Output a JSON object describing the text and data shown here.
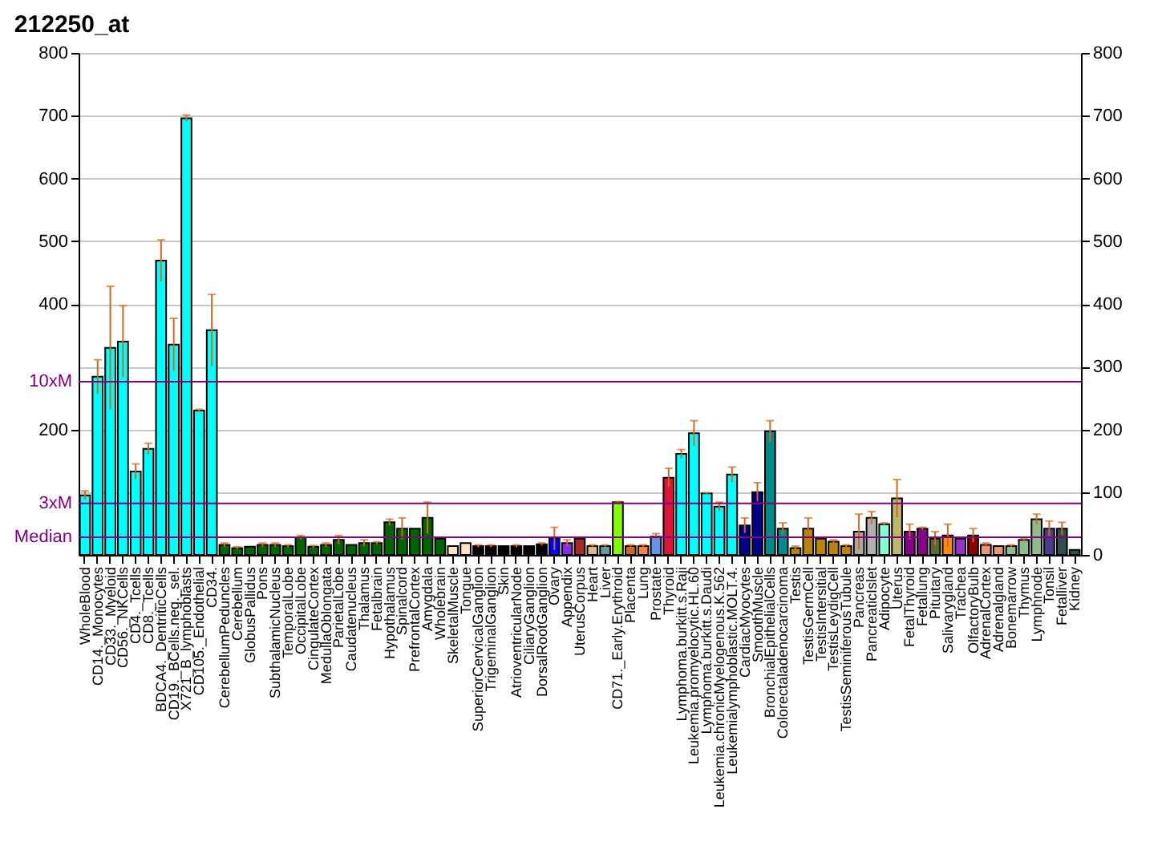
{
  "chart_data": {
    "type": "bar",
    "title": "212250_at",
    "categories": [
      "WholeBlood",
      "CD14._Monocytes",
      "CD33._Myeloid",
      "CD56._NKCells",
      "CD4._Tcells",
      "CD8._Tcells",
      "BDCA4._DentriticCells",
      "CD19._BCells.neg._sel.",
      "X721_B_lymphoblasts",
      "CD105._Endothelial",
      "CD34.",
      "CerebellumPeduncles",
      "Cerebellum",
      "GlobusPallidus",
      "Pons",
      "SubthalamicNucleus",
      "TemporalLobe",
      "OccipitalLobe",
      "CingulateCortex",
      "MedullaOblongata",
      "ParietalLobe",
      "Caudatenucleus",
      "Thalamus",
      "Fetalbrain",
      "Hypothalamus",
      "Spinalcord",
      "PrefrontalCortex",
      "Amygdala",
      "Wholebrain",
      "SkeletalMuscle",
      "Tongue",
      "SuperiorCervicalGanglion",
      "TrigeminalGanglion",
      "Skin",
      "AtrioventricularNode",
      "CiliaryGanglion",
      "DorsalRootGanglion",
      "Ovary",
      "Appendix",
      "UterusCorpus",
      "Heart",
      "Liver",
      "CD71._Early.Erythroid",
      "Placenta",
      "Lung",
      "Prostate",
      "Thyroid",
      "Lymphoma.burkitt.s.Raji",
      "Leukemia.promyelocytic.HL.60",
      "Lymphoma.burkitt.s.Daudi",
      "Leukemia.chronicMyelogenous.K.562",
      "Leukemialymphoblastic.MOLT.4.",
      "CardiacMyocytes",
      "SmoothMuscle",
      "BronchialEpithelialCells",
      "Colorectaladenocarcinoma",
      "Testis",
      "TestisGermCell",
      "TestisIntersitial",
      "TestisLeydigCell",
      "TestisSeminiferousTubule",
      "Pancreas",
      "PancreaticIslet",
      "Adipocyte",
      "Uterus",
      "FetalThyroid",
      "Fetallung",
      "Pituitary",
      "Salivarygland",
      "Trachea",
      "OlfactoryBulb",
      "AdrenalCortex",
      "Adrenalgland",
      "Bonemarrow",
      "Thymus",
      "Lymphnode",
      "Tonsil",
      "Fetalliver",
      "Kidney"
    ],
    "values": [
      95,
      284,
      330,
      340,
      133,
      169,
      469,
      335,
      696,
      230,
      358,
      16,
      11,
      13,
      16,
      16,
      14,
      28,
      13,
      16,
      24,
      16,
      19,
      19,
      52,
      42,
      42,
      59,
      26,
      14,
      19,
      14,
      14,
      14,
      14,
      14,
      17,
      26,
      19,
      26,
      14,
      14,
      84,
      14,
      14,
      29,
      123,
      161,
      194,
      98,
      77,
      128,
      47,
      100,
      197,
      42,
      11,
      42,
      26,
      21,
      14,
      37,
      59,
      49,
      90,
      37,
      42,
      26,
      31,
      26,
      31,
      16,
      14,
      14,
      24,
      57,
      42,
      42,
      8
    ],
    "errors": [
      7,
      27,
      98,
      57,
      12,
      9,
      33,
      42,
      5,
      2,
      57,
      3,
      2,
      null,
      3,
      3,
      2,
      3,
      2,
      3,
      7,
      null,
      5,
      2,
      5,
      17,
      null,
      25,
      null,
      null,
      null,
      2,
      2,
      null,
      2,
      null,
      2,
      18,
      5,
      null,
      2,
      2,
      1,
      2,
      2,
      5,
      15,
      7,
      20,
      1,
      7,
      12,
      12,
      15,
      17,
      9,
      3,
      17,
      null,
      3,
      2,
      28,
      10,
      2,
      30,
      12,
      2,
      11,
      18,
      null,
      11,
      3,
      null,
      2,
      2,
      8,
      12,
      10,
      null
    ],
    "colors": [
      "#00ffff",
      "#00ffff",
      "#00ffff",
      "#00ffff",
      "#00ffff",
      "#00ffff",
      "#00ffff",
      "#00ffff",
      "#00ffff",
      "#00ffff",
      "#00ffff",
      "#006400",
      "#006400",
      "#006400",
      "#006400",
      "#006400",
      "#006400",
      "#006400",
      "#006400",
      "#006400",
      "#006400",
      "#006400",
      "#006400",
      "#006400",
      "#006400",
      "#006400",
      "#006400",
      "#006400",
      "#006400",
      "#ffe4c4",
      "#ffe4c4",
      "#000000",
      "#000000",
      "#000000",
      "#000000",
      "#000000",
      "#000000",
      "#0000ff",
      "#8a2be2",
      "#a52a2a",
      "#deb887",
      "#5f9ea0",
      "#7fff00",
      "#d2691e",
      "#ff7f50",
      "#6495ed",
      "#dc143c",
      "#00ffff",
      "#00ffff",
      "#00ffff",
      "#00ffff",
      "#00ffff",
      "#00008b",
      "#00008b",
      "#008b8b",
      "#008b8b",
      "#b8860b",
      "#b8860b",
      "#b8860b",
      "#b8860b",
      "#b8860b",
      "#a9a9a9",
      "#b0b0b0",
      "#7fffd4",
      "#bdb76b",
      "#8b008b",
      "#8b008b",
      "#556b2f",
      "#ff8c00",
      "#9932cc",
      "#8b0000",
      "#e9967a",
      "#e9967a",
      "#8fbc8f",
      "#8fbc8f",
      "#8fbc8f",
      "#483d8b",
      "#2f4f4f",
      "#2f4f4f"
    ],
    "ylim": [
      0,
      800
    ],
    "yticks": [
      200,
      400,
      500,
      600,
      700,
      800
    ],
    "y2lim": [
      0,
      800
    ],
    "y2ticks": [
      0,
      100,
      200,
      300,
      400,
      500,
      600,
      700,
      800
    ],
    "ref_lines": [
      {
        "axis": "y",
        "value": 276,
        "label": "10xM",
        "color": "#800080"
      },
      {
        "axis": "y",
        "value": 82,
        "label": "3xM",
        "color": "#800080"
      },
      {
        "axis": "y",
        "value": 28,
        "label": "Median",
        "color": "#800080"
      }
    ],
    "grid": "y"
  }
}
